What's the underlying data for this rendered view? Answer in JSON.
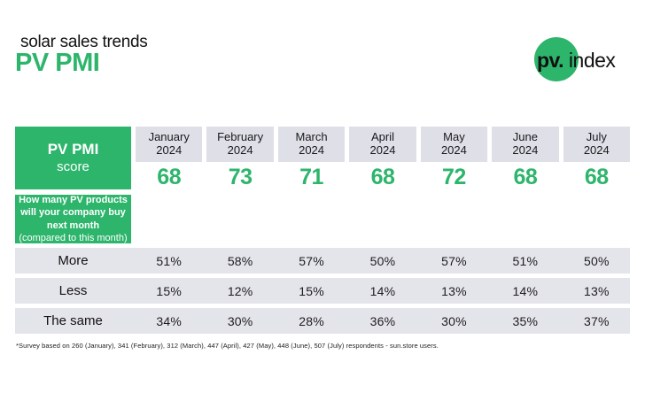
{
  "header": {
    "subtitle": "solar sales trends",
    "title": "PV PMI"
  },
  "logo": {
    "bold": "pv.",
    "regular": " index",
    "circle_icon": "green-circle"
  },
  "table": {
    "score_label_bold": "PV PMI",
    "score_label_regular": "score",
    "question_bold": "How many PV products will your company buy next month",
    "question_regular": "(compared to this month)",
    "months": [
      {
        "month": "January",
        "year": "2024",
        "score": "68"
      },
      {
        "month": "February",
        "year": "2024",
        "score": "73"
      },
      {
        "month": "March",
        "year": "2024",
        "score": "71"
      },
      {
        "month": "April",
        "year": "2024",
        "score": "68"
      },
      {
        "month": "May",
        "year": "2024",
        "score": "72"
      },
      {
        "month": "June",
        "year": "2024",
        "score": "68"
      },
      {
        "month": "July",
        "year": "2024",
        "score": "68"
      }
    ],
    "rows": [
      {
        "label": "More",
        "values": [
          "51%",
          "58%",
          "57%",
          "50%",
          "57%",
          "51%",
          "50%"
        ]
      },
      {
        "label": "Less",
        "values": [
          "15%",
          "12%",
          "15%",
          "14%",
          "13%",
          "14%",
          "13%"
        ]
      },
      {
        "label": "The same",
        "values": [
          "34%",
          "30%",
          "28%",
          "36%",
          "30%",
          "35%",
          "37%"
        ]
      }
    ]
  },
  "footnote": "*Survey based on 260 (January), 341 (February), 312 (March), 447 (April), 427 (May), 448 (June), 507 (July) respondents - sun.store users.",
  "colors": {
    "green": "#2db56c",
    "gray_header": "#dfdfe7",
    "gray_band": "#e4e4eb"
  },
  "chart_data": {
    "type": "table",
    "title": "PV PMI",
    "subtitle": "solar sales trends",
    "question": "How many PV products will your company buy next month (compared to this month)",
    "categories": [
      "January 2024",
      "February 2024",
      "March 2024",
      "April 2024",
      "May 2024",
      "June 2024",
      "July 2024"
    ],
    "series": [
      {
        "name": "PV PMI score",
        "values": [
          68,
          73,
          71,
          68,
          72,
          68,
          68
        ]
      },
      {
        "name": "More",
        "unit": "%",
        "values": [
          51,
          58,
          57,
          50,
          57,
          51,
          50
        ]
      },
      {
        "name": "Less",
        "unit": "%",
        "values": [
          15,
          12,
          15,
          14,
          13,
          14,
          13
        ]
      },
      {
        "name": "The same",
        "unit": "%",
        "values": [
          34,
          30,
          28,
          36,
          30,
          35,
          37
        ]
      }
    ],
    "footnote": "*Survey based on 260 (January), 341 (February), 312 (March), 447 (April), 427 (May), 448 (June), 507 (July) respondents - sun.store users."
  }
}
